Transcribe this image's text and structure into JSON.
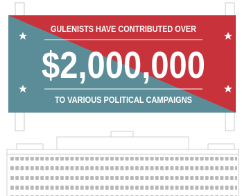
{
  "banner": {
    "line1": "GULENISTS HAVE CONTRIBUTED OVER",
    "amount": "$2,000,000",
    "line2": "TO VARIOUS POLITICAL CAMPAIGNS"
  }
}
